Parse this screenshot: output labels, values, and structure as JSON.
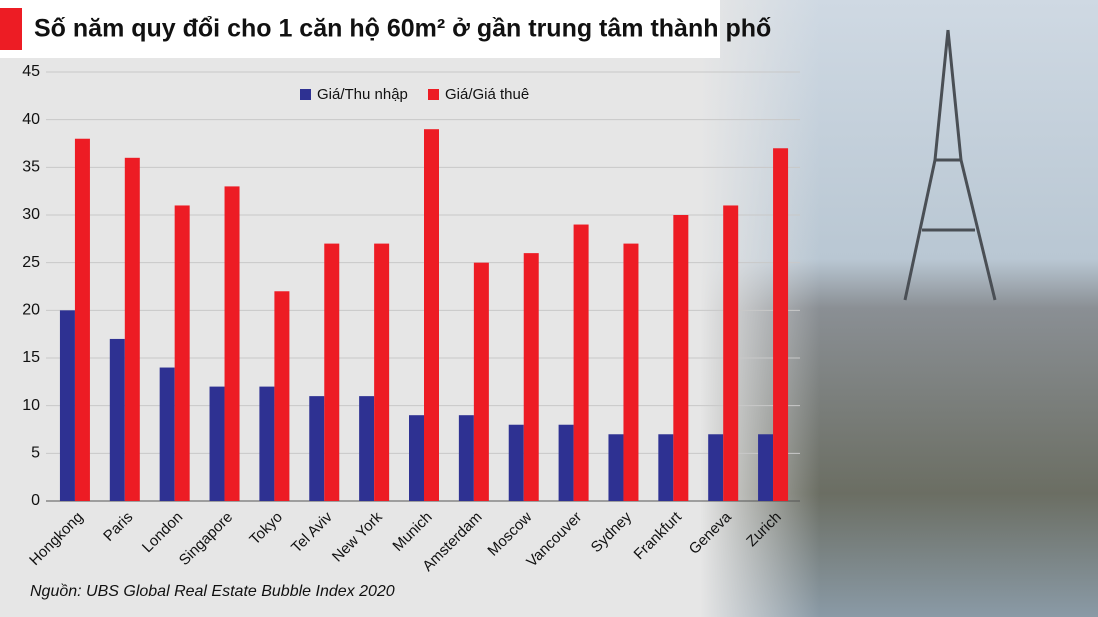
{
  "chart_data": {
    "type": "bar",
    "title": "Số năm quy đổi cho 1 căn hộ 60m² ở gần trung tâm thành phố",
    "source": "Nguồn: UBS Global Real Estate Bubble Index 2020",
    "categories": [
      "Hongkong",
      "Paris",
      "London",
      "Singapore",
      "Tokyo",
      "Tel Aviv",
      "New York",
      "Munich",
      "Amsterdam",
      "Moscow",
      "Vancouver",
      "Sydney",
      "Frankfurt",
      "Geneva",
      "Zurich"
    ],
    "series": [
      {
        "name": "Giá/Thu nhập",
        "color": "#2e3192",
        "values": [
          20,
          17,
          14,
          12,
          12,
          11,
          11,
          9,
          9,
          8,
          8,
          7,
          7,
          7,
          7
        ]
      },
      {
        "name": "Giá/Giá thuê",
        "color": "#ed1c24",
        "values": [
          38,
          36,
          31,
          33,
          22,
          27,
          27,
          39,
          25,
          26,
          29,
          27,
          30,
          31,
          37
        ]
      }
    ],
    "ylim": [
      0,
      45
    ],
    "yticks": [
      0,
      5,
      10,
      15,
      20,
      25,
      30,
      35,
      40,
      45
    ],
    "grid": true
  }
}
